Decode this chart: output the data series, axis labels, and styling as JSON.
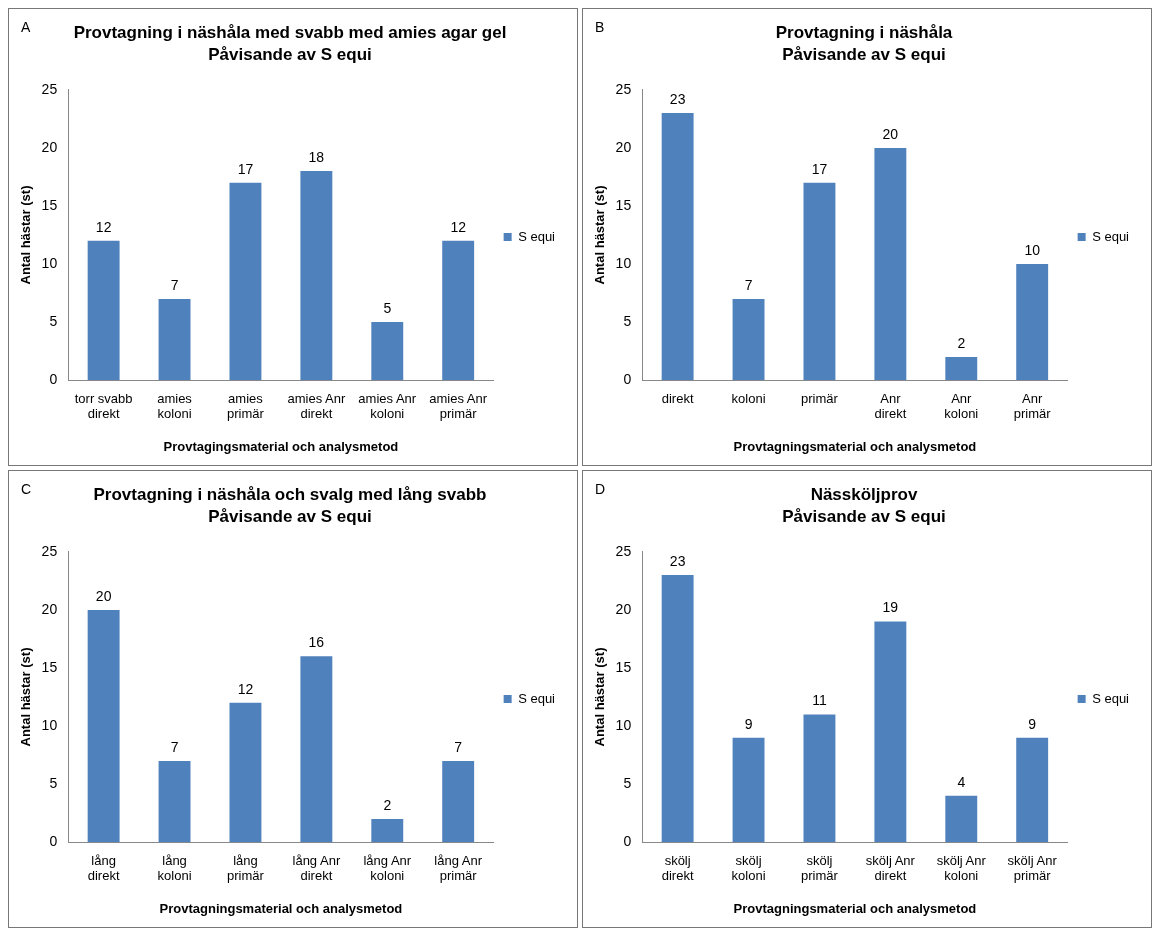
{
  "chart_data": [
    {
      "type": "bar",
      "title": "Provtagning i näshåla med svabb med amies agar gel",
      "subtitle": "Påvisande av S equi",
      "xlabel": "Provtagingsmaterial och analysmetod",
      "ylabel": "Antal hästar (st)",
      "annotations": [
        "A"
      ],
      "categories": [
        "torr svabb direkt",
        "amies koloni",
        "amies primär",
        "amies Anr direkt",
        "amies Anr koloni",
        "amies Anr primär"
      ],
      "series": [
        {
          "name": "S equi",
          "color": "#4f81bd",
          "values": [
            12,
            7,
            17,
            18,
            5,
            12
          ]
        }
      ],
      "ylim": [
        0,
        25
      ],
      "yticks": [
        0,
        5,
        10,
        15,
        20,
        25
      ],
      "grid": false,
      "legend": "right",
      "data_labels": true
    },
    {
      "type": "bar",
      "title": "Provtagning i näshåla",
      "subtitle": "Påvisande av S equi",
      "xlabel": "Provtagningsmaterial och analysmetod",
      "ylabel": "Antal hästar (st)",
      "annotations": [
        "B"
      ],
      "categories": [
        "direkt",
        "koloni",
        "primär",
        "Anr direkt",
        "Anr koloni",
        "Anr primär"
      ],
      "series": [
        {
          "name": "S equi",
          "color": "#4f81bd",
          "values": [
            23,
            7,
            17,
            20,
            2,
            10
          ]
        }
      ],
      "ylim": [
        0,
        25
      ],
      "yticks": [
        0,
        5,
        10,
        15,
        20,
        25
      ],
      "grid": false,
      "legend": "right",
      "data_labels": true
    },
    {
      "type": "bar",
      "title": "Provtagning i näshåla och svalg med lång svabb",
      "subtitle": "Påvisande av S equi",
      "xlabel": "Provtagningsmaterial och analysmetod",
      "ylabel": "Antal hästar (st)",
      "annotations": [
        "C"
      ],
      "categories": [
        "lång direkt",
        "lång koloni",
        "lång primär",
        "lång Anr direkt",
        "lång Anr koloni",
        "lång Anr primär"
      ],
      "series": [
        {
          "name": "S equi",
          "color": "#4f81bd",
          "values": [
            20,
            7,
            12,
            16,
            2,
            7
          ]
        }
      ],
      "ylim": [
        0,
        25
      ],
      "yticks": [
        0,
        5,
        10,
        15,
        20,
        25
      ],
      "grid": false,
      "legend": "right",
      "data_labels": true
    },
    {
      "type": "bar",
      "title": "Nässköljprov",
      "subtitle": "Påvisande av S equi",
      "xlabel": "Provtagningsmaterial och analysmetod",
      "ylabel": "Antal hästar (st)",
      "annotations": [
        "D"
      ],
      "categories": [
        "skölj direkt",
        "skölj koloni",
        "skölj primär",
        "skölj Anr direkt",
        "skölj Anr koloni",
        "skölj Anr primär"
      ],
      "series": [
        {
          "name": "S equi",
          "color": "#4f81bd",
          "values": [
            23,
            9,
            11,
            19,
            4,
            9
          ]
        }
      ],
      "ylim": [
        0,
        25
      ],
      "yticks": [
        0,
        5,
        10,
        15,
        20,
        25
      ],
      "grid": false,
      "legend": "right",
      "data_labels": true
    }
  ]
}
